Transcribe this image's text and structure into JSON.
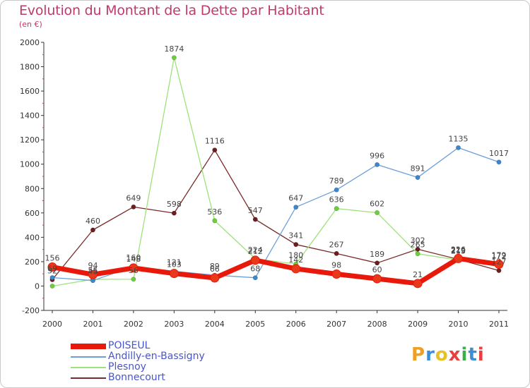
{
  "title": "Evolution du Montant de la Dette par Habitant",
  "subtitle": "(en €)",
  "brand": {
    "text": "Proxiti",
    "letters": [
      {
        "ch": "P",
        "color": "#f0a020"
      },
      {
        "ch": "r",
        "color": "#3b8fd6"
      },
      {
        "ch": "o",
        "color": "#e8c020"
      },
      {
        "ch": "x",
        "color": "#e84040"
      },
      {
        "ch": "i",
        "color": "#3bb04a"
      },
      {
        "ch": "t",
        "color": "#3b8fd6"
      },
      {
        "ch": "i",
        "color": "#e84040"
      }
    ]
  },
  "chart_data": {
    "type": "line",
    "title": "Evolution du Montant de la Dette par Habitant",
    "subtitle": "(en €)",
    "xlabel": "",
    "ylabel": "",
    "x": [
      "2000",
      "2001",
      "2002",
      "2003",
      "2004",
      "2005",
      "2006",
      "2007",
      "2008",
      "2009",
      "2010",
      "2011"
    ],
    "ylim": [
      -200,
      2000
    ],
    "yticks": [
      -200,
      0,
      200,
      400,
      600,
      800,
      1000,
      1200,
      1400,
      1600,
      1800,
      2000
    ],
    "grid": false,
    "legend_position": "bottom-left",
    "series": [
      {
        "name": "POISEUL",
        "color": "#e8190a",
        "marker_color": "#e83a1a",
        "line_width": 7,
        "values": [
          156,
          94,
          148,
          103,
          66,
          212,
          142,
          98,
          60,
          21,
          226,
          179
        ]
      },
      {
        "name": "Andilly-en-Bassigny",
        "color": "#6c9fd8",
        "marker_color": "#3a86d0",
        "line_width": 1.3,
        "values": [
          69,
          45,
          160,
          121,
          89,
          68,
          647,
          789,
          996,
          891,
          1135,
          1017
        ]
      },
      {
        "name": "Plesnoy",
        "color": "#9de27a",
        "marker_color": "#6bcf3a",
        "line_width": 1.3,
        "values": [
          0,
          55,
          56,
          1874,
          536,
          224,
          180,
          636,
          602,
          265,
          213,
          172
        ]
      },
      {
        "name": "Bonnecourt",
        "color": "#7a2a2a",
        "marker_color": "#6b1e1e",
        "line_width": 1.3,
        "values": [
          52,
          460,
          649,
          598,
          1116,
          547,
          341,
          267,
          189,
          302,
          219,
          127
        ]
      }
    ],
    "data_labels": [
      {
        "x": "2000",
        "text": "156"
      },
      {
        "x": "2000",
        "text": "69"
      },
      {
        "x": "2000",
        "text": "52"
      },
      {
        "x": "2001",
        "text": "94"
      },
      {
        "x": "2001",
        "text": "45"
      },
      {
        "x": "2001",
        "text": "55"
      },
      {
        "x": "2001",
        "text": "460"
      },
      {
        "x": "2002",
        "text": "160"
      },
      {
        "x": "2002",
        "text": "148"
      },
      {
        "x": "2002",
        "text": "56"
      },
      {
        "x": "2002",
        "text": "649"
      },
      {
        "x": "2003",
        "text": "121"
      },
      {
        "x": "2003",
        "text": "103"
      },
      {
        "x": "2003",
        "text": "1874"
      },
      {
        "x": "2003",
        "text": "598"
      },
      {
        "x": "2004",
        "text": "89"
      },
      {
        "x": "2004",
        "text": "66"
      },
      {
        "x": "2004",
        "text": "536"
      },
      {
        "x": "2004",
        "text": "1116"
      },
      {
        "x": "2005",
        "text": "212"
      },
      {
        "x": "2005",
        "text": "224"
      },
      {
        "x": "2005",
        "text": "68"
      },
      {
        "x": "2005",
        "text": "547"
      },
      {
        "x": "2006",
        "text": "180"
      },
      {
        "x": "2006",
        "text": "142"
      },
      {
        "x": "2006",
        "text": "647"
      },
      {
        "x": "2006",
        "text": "341"
      },
      {
        "x": "2007",
        "text": "789"
      },
      {
        "x": "2007",
        "text": "636"
      },
      {
        "x": "2007",
        "text": "267"
      },
      {
        "x": "2007",
        "text": "98"
      },
      {
        "x": "2008",
        "text": "996"
      },
      {
        "x": "2008",
        "text": "602"
      },
      {
        "x": "2008",
        "text": "189"
      },
      {
        "x": "2008",
        "text": "60"
      },
      {
        "x": "2009",
        "text": "891"
      },
      {
        "x": "2009",
        "text": "302"
      },
      {
        "x": "2009",
        "text": "265"
      },
      {
        "x": "2009",
        "text": "21"
      },
      {
        "x": "2010",
        "text": "1135"
      },
      {
        "x": "2010",
        "text": "226"
      },
      {
        "x": "2010",
        "text": "219"
      },
      {
        "x": "2010",
        "text": "213"
      },
      {
        "x": "2011",
        "text": "1017"
      },
      {
        "x": "2011",
        "text": "179"
      },
      {
        "x": "2011",
        "text": "172"
      },
      {
        "x": "2011",
        "text": "127"
      }
    ]
  }
}
